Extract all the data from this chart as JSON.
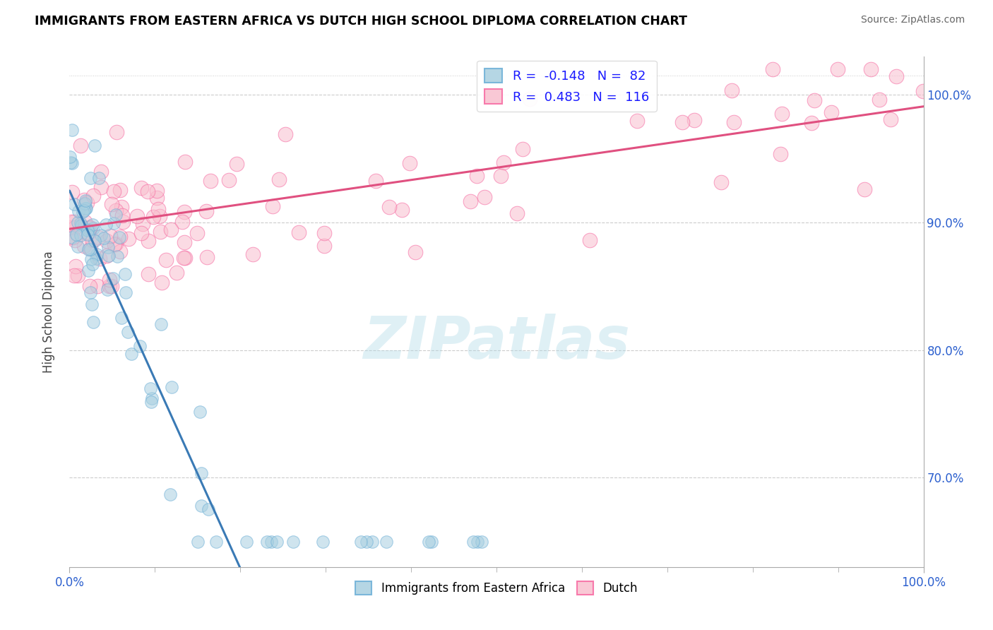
{
  "title": "IMMIGRANTS FROM EASTERN AFRICA VS DUTCH HIGH SCHOOL DIPLOMA CORRELATION CHART",
  "source": "Source: ZipAtlas.com",
  "ylabel": "High School Diploma",
  "y_ticks_right": [
    70.0,
    80.0,
    90.0,
    100.0
  ],
  "y_tick_labels_right": [
    "70.0%",
    "80.0%",
    "90.0%",
    "100.0%"
  ],
  "legend_blue_r": "-0.148",
  "legend_blue_n": "82",
  "legend_pink_r": "0.483",
  "legend_pink_n": "116",
  "legend_blue_label": "Immigrants from Eastern Africa",
  "legend_pink_label": "Dutch",
  "blue_face_color": "#a8cfe0",
  "blue_edge_color": "#6baed6",
  "pink_face_color": "#f9bfce",
  "pink_edge_color": "#f768a1",
  "blue_line_color": "#3a7ab5",
  "pink_line_color": "#e05080",
  "watermark_text": "ZIPatlas",
  "watermark_color": "#add8e6",
  "xlim": [
    0,
    100
  ],
  "ylim": [
    63,
    103
  ],
  "figsize": [
    14.06,
    8.92
  ],
  "dpi": 100,
  "blue_intercept": 92.5,
  "blue_slope": -0.148,
  "pink_intercept": 89.5,
  "pink_slope": 0.096,
  "blue_n": 82,
  "pink_n": 116
}
